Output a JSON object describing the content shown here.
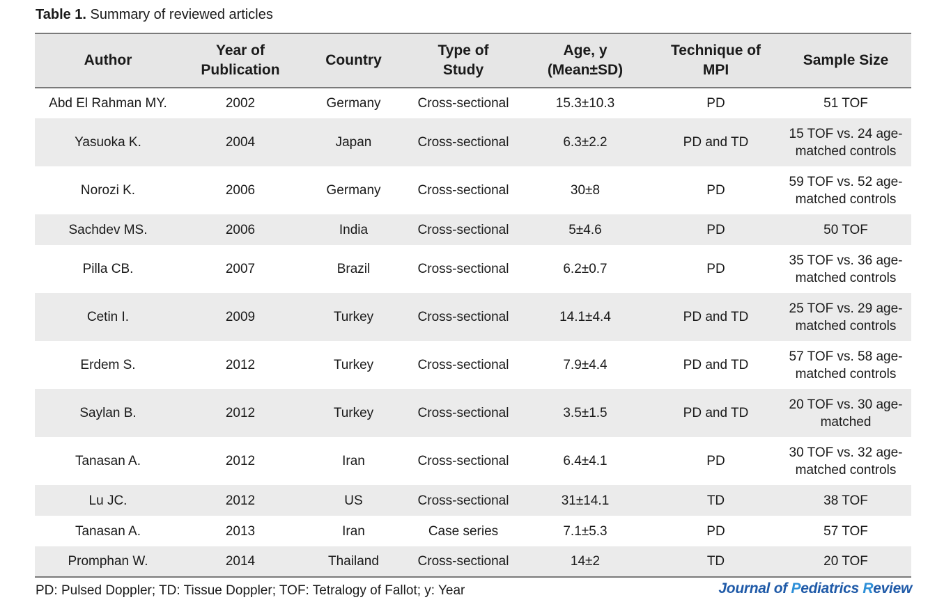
{
  "caption": {
    "label": "Table 1.",
    "text": " Summary of reviewed articles"
  },
  "table": {
    "headers": [
      [
        "Author"
      ],
      [
        "Year of",
        "Publication"
      ],
      [
        "Country"
      ],
      [
        "Type of",
        "Study"
      ],
      [
        "Age, y",
        "(Mean±SD)"
      ],
      [
        "Technique of",
        "MPI"
      ],
      [
        "Sample Size"
      ]
    ],
    "rows": [
      {
        "author": "Abd El Rahman MY.",
        "year": "2002",
        "country": "Germany",
        "type": "Cross-sectional",
        "age": "15.3±10.3",
        "technique": "PD",
        "sample": [
          "51 TOF"
        ]
      },
      {
        "author": "Yasuoka K.",
        "year": "2004",
        "country": "Japan",
        "type": "Cross-sectional",
        "age": "6.3±2.2",
        "technique": "PD and TD",
        "sample": [
          "15 TOF vs. 24 age-",
          "matched controls"
        ]
      },
      {
        "author": "Norozi K.",
        "year": "2006",
        "country": "Germany",
        "type": "Cross-sectional",
        "age": "30±8",
        "technique": "PD",
        "sample": [
          "59 TOF vs. 52 age-",
          "matched controls"
        ]
      },
      {
        "author": "Sachdev MS.",
        "year": "2006",
        "country": "India",
        "type": "Cross-sectional",
        "age": "5±4.6",
        "technique": "PD",
        "sample": [
          "50 TOF"
        ]
      },
      {
        "author": "Pilla CB.",
        "year": "2007",
        "country": "Brazil",
        "type": "Cross-sectional",
        "age": "6.2±0.7",
        "technique": "PD",
        "sample": [
          "35 TOF vs. 36 age-",
          "matched controls"
        ]
      },
      {
        "author": "Cetin I.",
        "year": "2009",
        "country": "Turkey",
        "type": "Cross-sectional",
        "age": "14.1±4.4",
        "technique": "PD and TD",
        "sample": [
          "25 TOF vs. 29 age-",
          "matched controls"
        ]
      },
      {
        "author": "Erdem S.",
        "year": "2012",
        "country": "Turkey",
        "type": "Cross-sectional",
        "age": "7.9±4.4",
        "technique": "PD and TD",
        "sample": [
          "57 TOF vs. 58 age-",
          "matched controls"
        ]
      },
      {
        "author": "Saylan B.",
        "year": "2012",
        "country": "Turkey",
        "type": "Cross-sectional",
        "age": "3.5±1.5",
        "technique": "PD and TD",
        "sample": [
          "20 TOF vs. 30 age-",
          "matched"
        ]
      },
      {
        "author": "Tanasan A.",
        "year": "2012",
        "country": "Iran",
        "type": "Cross-sectional",
        "age": "6.4±4.1",
        "technique": "PD",
        "sample": [
          "30 TOF vs. 32 age-",
          "matched controls"
        ]
      },
      {
        "author": "Lu JC.",
        "year": "2012",
        "country": "US",
        "type": "Cross-sectional",
        "age": "31±14.1",
        "technique": "TD",
        "sample": [
          "38 TOF"
        ]
      },
      {
        "author": "Tanasan A.",
        "year": "2013",
        "country": "Iran",
        "type": "Case series",
        "age": "7.1±5.3",
        "technique": "PD",
        "sample": [
          "57 TOF"
        ]
      },
      {
        "author": "Promphan W.",
        "year": "2014",
        "country": "Thailand",
        "type": "Cross-sectional",
        "age": "14±2",
        "technique": "TD",
        "sample": [
          "20 TOF"
        ]
      }
    ]
  },
  "footnote": "PD: Pulsed Doppler; TD: Tissue Doppler; TOF: Tetralogy of Fallot; y: Year",
  "journal_logo": {
    "parts": [
      "Journal of ",
      "P",
      "ediatrics ",
      "R",
      "eview"
    ],
    "colors": {
      "base": "#1f5aa8",
      "accent": "#2c8fd8"
    }
  },
  "colors": {
    "header_bg": "#e6e6e6",
    "shaded_row_bg": "#ebebeb",
    "rule": "#7a7a7a",
    "text": "#1a1a1a"
  }
}
